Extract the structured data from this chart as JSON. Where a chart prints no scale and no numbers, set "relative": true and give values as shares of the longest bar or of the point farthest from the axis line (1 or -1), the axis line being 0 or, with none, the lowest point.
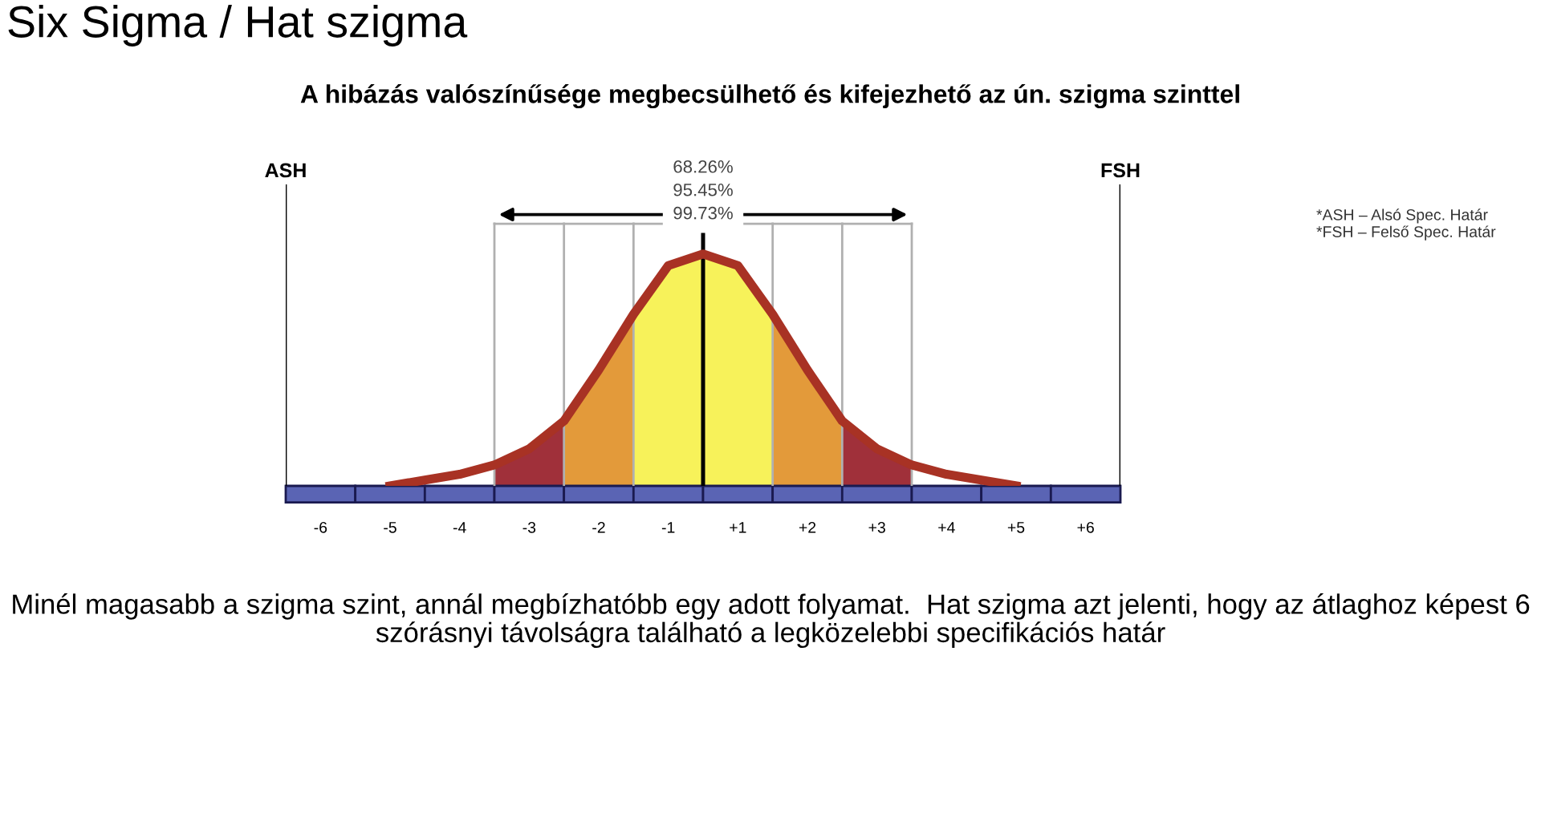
{
  "chart_data": {
    "type": "line",
    "relative": true,
    "title": "Six Sigma / Hat szigma",
    "subtitle": "A hibázás valószínűsége megbecsülhető és kifejezhető az ún. szigma szinttel",
    "x": [
      -4.5,
      -4,
      -3.5,
      -3,
      -2.5,
      -2,
      -1.5,
      -1,
      -0.5,
      0,
      0.5,
      1,
      1.5,
      2,
      2.5,
      3,
      3.5,
      4,
      4.5
    ],
    "series": [
      {
        "type": "area",
        "color": "#a0303a",
        "x": [
          -3,
          -2.5,
          -2
        ],
        "values": [
          0.09,
          0.16,
          0.28
        ]
      },
      {
        "type": "area",
        "color": "#e39a3a",
        "x": [
          -2,
          -1.5,
          -1
        ],
        "values": [
          0.28,
          0.5,
          0.74
        ]
      },
      {
        "type": "area",
        "color": "#f7f25a",
        "x": [
          -1,
          -0.5,
          0,
          0.5,
          1
        ],
        "values": [
          0.74,
          0.95,
          1,
          0.95,
          0.74
        ]
      },
      {
        "type": "area",
        "color": "#e39a3a",
        "x": [
          1,
          1.5,
          2
        ],
        "values": [
          0.74,
          0.5,
          0.28
        ]
      },
      {
        "type": "area",
        "color": "#a0303a",
        "x": [
          2,
          2.5,
          3
        ],
        "values": [
          0.28,
          0.16,
          0.09
        ]
      },
      {
        "color": "#a83224",
        "values": [
          0,
          0.025,
          0.05,
          0.09,
          0.16,
          0.28,
          0.5,
          0.74,
          0.95,
          1,
          0.95,
          0.74,
          0.5,
          0.28,
          0.16,
          0.09,
          0.05,
          0.025,
          0
        ]
      }
    ],
    "xlim": [
      -6,
      6
    ],
    "xticks": [
      {
        "value": -5.5,
        "label": "-6"
      },
      {
        "value": -4.5,
        "label": "-5"
      },
      {
        "value": -3.5,
        "label": "-4"
      },
      {
        "value": -2.5,
        "label": "-3"
      },
      {
        "value": -1.5,
        "label": "-2"
      },
      {
        "value": -0.5,
        "label": "-1"
      },
      {
        "value": 0.5,
        "label": "+1"
      },
      {
        "value": 1.5,
        "label": "+2"
      },
      {
        "value": 2.5,
        "label": "+3"
      },
      {
        "value": 3.5,
        "label": "+4"
      },
      {
        "value": 4.5,
        "label": "+5"
      },
      {
        "value": 5.5,
        "label": "+6"
      }
    ],
    "ref_lines": [
      {
        "axis": "x",
        "value": -6,
        "label": "ASH",
        "color": "#000000"
      },
      {
        "axis": "x",
        "value": 6,
        "label": "FSH",
        "color": "#000000"
      },
      {
        "axis": "x",
        "value": -3,
        "color": "#b0b0b0"
      },
      {
        "axis": "x",
        "value": -2,
        "color": "#b0b0b0"
      },
      {
        "axis": "x",
        "value": -1,
        "color": "#b0b0b0"
      },
      {
        "axis": "x",
        "value": 0,
        "color": "#000000"
      },
      {
        "axis": "x",
        "value": 1,
        "color": "#b0b0b0"
      },
      {
        "axis": "x",
        "value": 2,
        "color": "#b0b0b0"
      },
      {
        "axis": "x",
        "value": 3,
        "color": "#b0b0b0"
      }
    ],
    "annotations": [
      "68.26%",
      "95.45%",
      "99.73%",
      "*ASH – Alsó Spec. Határ",
      "*FSH – Felső Spec. Határ",
      "Minél magasabb a szigma szint, annál megbízhatóbb egy adott folyamat.  Hat szigma azt jelenti, hogy az átlaghoz képest 6 szórásnyi távolságra található a legközelebbi specifikációs határ"
    ],
    "grid": false,
    "legend": false,
    "marker": "none",
    "line_style": "solid"
  }
}
